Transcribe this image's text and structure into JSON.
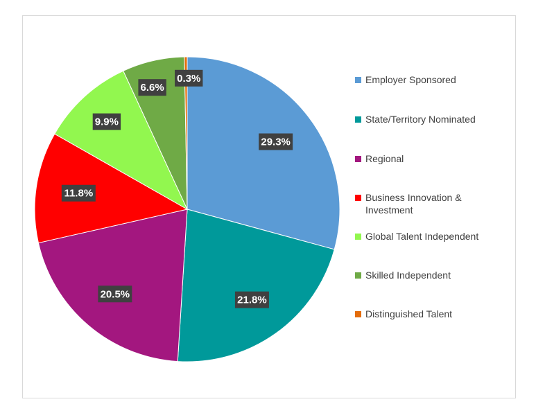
{
  "chart_data": {
    "type": "pie",
    "title": "",
    "legend_position": "right",
    "categories": [
      "Employer Sponsored",
      "State/Territory Nominated",
      "Regional",
      "Business Innovation & Investment",
      "Global Talent Independent",
      "Skilled Independent",
      "Distinguished Talent"
    ],
    "values": [
      29.3,
      21.8,
      20.5,
      11.8,
      9.9,
      6.6,
      0.3
    ],
    "labels": [
      "29.3%",
      "21.8%",
      "20.5%",
      "11.8%",
      "9.9%",
      "6.6%",
      "0.3%"
    ],
    "colors": [
      "#5b9bd5",
      "#00999a",
      "#a3177f",
      "#ff0000",
      "#92f74f",
      "#6faa46",
      "#e46c0a"
    ]
  }
}
